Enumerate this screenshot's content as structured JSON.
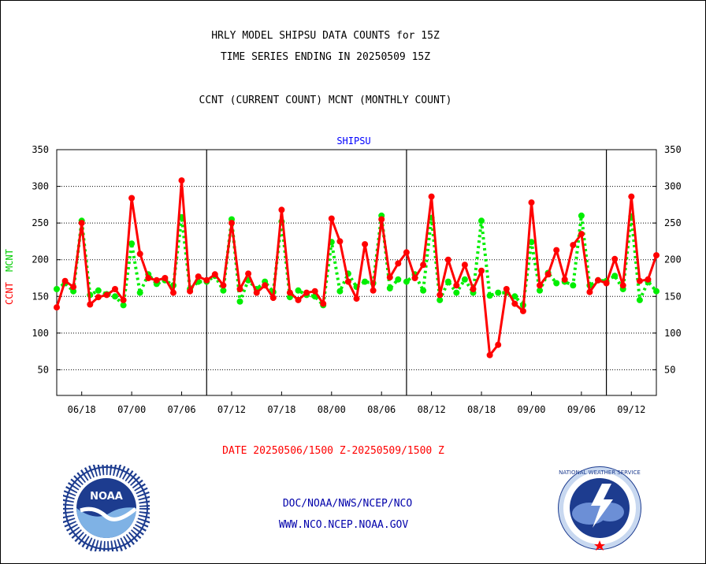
{
  "header": {
    "title_line1": "HRLY MODEL SHIPSU DATA COUNTS for 15Z",
    "title_line2": "TIME SERIES ENDING IN 20250509 15Z",
    "subtitle": "CCNT (CURRENT COUNT) MCNT (MONTHLY COUNT)"
  },
  "footer": {
    "date_range": "DATE 20250506/1500 Z-20250509/1500 Z",
    "org_line": "DOC/NOAA/NWS/NCEP/NCO",
    "url": "WWW.NCO.NCEP.NOAA.GOV"
  },
  "logos": {
    "noaa": {
      "center_text": "NOAA"
    },
    "nws": {
      "ring_text": "NATIONAL WEATHER SERVICE"
    }
  },
  "colors": {
    "ccnt": "#ff0000",
    "mcnt": "#00ee00",
    "axis_title_blue": "#0000ff",
    "date_red": "#ff0000",
    "footer_blue": "#0000aa"
  },
  "chart_data": {
    "type": "line",
    "title": "SHIPSU",
    "ylabel_left": "CCNT",
    "ylabel_right": "MCNT",
    "ylim": [
      15,
      350
    ],
    "yticks": [
      50,
      100,
      150,
      200,
      250,
      300,
      350
    ],
    "x_tick_labels": [
      "06/18",
      "07/00",
      "07/06",
      "07/12",
      "07/18",
      "08/00",
      "08/06",
      "08/12",
      "08/18",
      "09/00",
      "09/06",
      "09/12"
    ],
    "day_separators_after_tick_index": [
      2,
      6,
      10
    ],
    "grid": "horizontal dotted",
    "series": [
      {
        "name": "CCNT",
        "values": [
          135,
          171,
          163,
          250,
          139,
          149,
          152,
          160,
          145,
          284,
          208,
          175,
          172,
          175,
          155,
          308,
          157,
          177,
          172,
          180,
          165,
          250,
          160,
          181,
          155,
          165,
          148,
          268,
          155,
          145,
          155,
          157,
          140,
          256,
          225,
          170,
          147,
          221,
          158,
          255,
          176,
          195,
          210,
          175,
          193,
          286,
          152,
          200,
          165,
          193,
          160,
          185,
          70,
          84,
          160,
          140,
          130,
          278,
          165,
          180,
          213,
          173,
          220,
          235,
          156,
          172,
          168,
          201,
          165,
          286,
          171,
          173,
          206
        ]
      },
      {
        "name": "MCNT",
        "values": [
          160,
          168,
          157,
          253,
          152,
          158,
          153,
          150,
          138,
          222,
          155,
          180,
          167,
          172,
          165,
          258,
          160,
          170,
          170,
          178,
          158,
          255,
          143,
          172,
          160,
          170,
          156,
          252,
          149,
          158,
          152,
          150,
          138,
          224,
          157,
          181,
          163,
          170,
          168,
          260,
          161,
          173,
          170,
          180,
          158,
          257,
          145,
          170,
          155,
          173,
          155,
          253,
          151,
          155,
          155,
          150,
          138,
          224,
          158,
          182,
          168,
          170,
          165,
          260,
          165,
          172,
          171,
          178,
          160,
          259,
          145,
          170,
          157
        ]
      }
    ]
  }
}
